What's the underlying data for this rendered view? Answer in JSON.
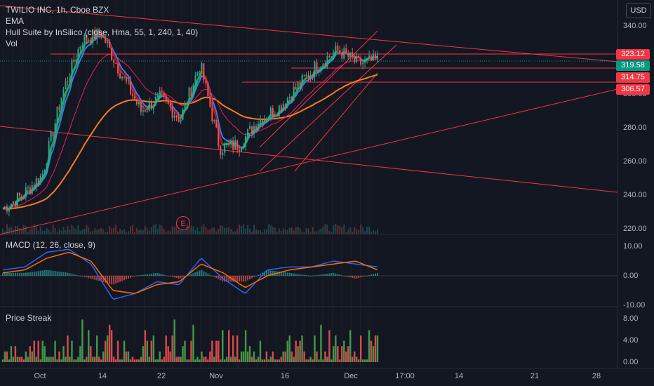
{
  "legend": {
    "symbol_line": "TWILIO INC, 1h, Cboe BZX",
    "ema_label": "EMA",
    "hull_label": "Hull Suite by InSilico (close, Hma, 55, 1, 240, 1, 40)",
    "vol_label": "Vol"
  },
  "currency_button": "USD",
  "earnings_marker": "E",
  "macd_label": "MACD (12, 26, close, 9)",
  "streak_label": "Price Streak",
  "colors": {
    "background": "#131722",
    "up": "#26a69a",
    "down": "#ef5350",
    "hull_green": "#2fbf4a",
    "hull_red": "#d01616",
    "ema_blue": "#2d7ff9",
    "ema_pink": "#e91e63",
    "ema_orange": "#f57c20",
    "trendline_red": "#f23645",
    "macd_line": "#2962ff",
    "signal_line": "#ff6d00"
  },
  "chart_data": [
    {
      "type": "candlestick",
      "title": "TWILIO INC, 1h, Cboe BZX",
      "ylim": [
        215,
        350
      ],
      "y_ticks": [
        "340.00",
        "300.00",
        "280.00",
        "260.00",
        "240.00",
        "220.00"
      ],
      "x_ticks": [
        "Oct",
        "14",
        "22",
        "Nov",
        "16",
        "Dec",
        "17:00",
        "14",
        "21",
        "28"
      ],
      "price_labels": [
        "323.12",
        "319.58",
        "314.75",
        "306.57"
      ],
      "x": [
        "Oct 1",
        "Oct 4",
        "Oct 7",
        "Oct 11",
        "Oct 14",
        "Oct 18",
        "Oct 21",
        "Oct 25",
        "Oct 28",
        "Nov 1",
        "Nov 4",
        "Nov 8",
        "Nov 11",
        "Nov 15",
        "Nov 18",
        "Nov 22",
        "Nov 25",
        "Nov 29",
        "Dec 2",
        "Dec 6"
      ],
      "series": [
        {
          "values": [
            232,
            240,
            252,
            300,
            332,
            336,
            312,
            290,
            298,
            285,
            318,
            268,
            270,
            285,
            292,
            305,
            318,
            326,
            318,
            320
          ]
        }
      ],
      "horizontal_levels": [
        323.12,
        319.58,
        314.75
      ]
    },
    {
      "type": "line",
      "title": "MACD (12, 26, close, 9)",
      "ylim": [
        -10,
        12
      ],
      "y_ticks": [
        "10.00",
        "0.00",
        "-10.00"
      ],
      "series": [
        {
          "values": [
            2,
            3,
            8,
            9,
            4,
            -8,
            -6,
            -2,
            -3,
            6,
            -1,
            -6,
            2,
            3,
            3,
            5,
            4,
            3
          ]
        },
        {
          "values": [
            1,
            2,
            6,
            8,
            5,
            -5,
            -6,
            -3,
            -2,
            4,
            1,
            -4,
            0,
            2,
            3,
            4,
            5,
            2
          ]
        }
      ]
    },
    {
      "type": "bar",
      "title": "Price Streak",
      "ylim": [
        0,
        9
      ],
      "y_ticks": [
        "8.00",
        "4.00",
        "0.00"
      ]
    }
  ]
}
